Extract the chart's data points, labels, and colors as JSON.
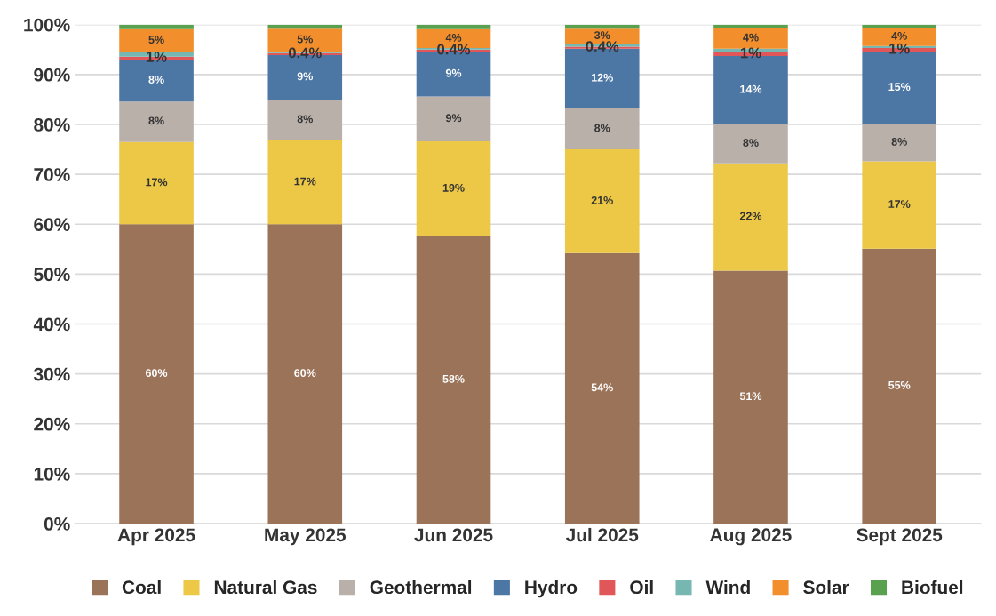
{
  "chart_data": {
    "type": "bar",
    "stacked": true,
    "categories": [
      "Apr 2025",
      "May 2025",
      "Jun 2025",
      "Jul 2025",
      "Aug 2025",
      "Sept 2025"
    ],
    "series": [
      {
        "name": "Coal",
        "color": "#9b7359",
        "values": [
          60.0,
          60.0,
          57.6,
          54.2,
          50.7,
          55.1
        ],
        "value_labels": [
          "60%",
          "60%",
          "58%",
          "54%",
          "51%",
          "55%"
        ]
      },
      {
        "name": "Natural Gas",
        "color": "#ecc846",
        "values": [
          16.5,
          16.8,
          19.0,
          20.8,
          21.5,
          17.5
        ],
        "value_labels": [
          "17%",
          "17%",
          "19%",
          "21%",
          "22%",
          "17%"
        ]
      },
      {
        "name": "Geothermal",
        "color": "#b9b0aa",
        "values": [
          8.1,
          8.2,
          9.0,
          8.2,
          7.9,
          7.5
        ],
        "value_labels": [
          "8%",
          "8%",
          "9%",
          "8%",
          "8%",
          "8%"
        ]
      },
      {
        "name": "Hydro",
        "color": "#4c77a5",
        "values": [
          8.4,
          8.9,
          9.0,
          12.0,
          13.6,
          14.5
        ],
        "value_labels": [
          "8%",
          "9%",
          "9%",
          "12%",
          "14%",
          "15%"
        ]
      },
      {
        "name": "Oil",
        "color": "#e15759",
        "values": [
          0.6,
          0.4,
          0.4,
          0.4,
          0.8,
          0.7
        ],
        "value_labels": [
          "1%",
          "0.4%",
          "0.4%",
          "0.4%",
          "1%",
          "1%"
        ]
      },
      {
        "name": "Wind",
        "color": "#76b7b2",
        "values": [
          0.9,
          0.3,
          0.3,
          0.6,
          0.7,
          0.4
        ]
      },
      {
        "name": "Solar",
        "color": "#f28e2b",
        "values": [
          4.6,
          4.6,
          3.8,
          3.0,
          4.1,
          3.7
        ],
        "value_labels": [
          "5%",
          "5%",
          "4%",
          "3%",
          "4%",
          "4%"
        ]
      },
      {
        "name": "Biofuel",
        "color": "#59a14f",
        "values": [
          0.9,
          0.8,
          0.9,
          0.8,
          0.7,
          0.6
        ]
      }
    ],
    "ylim": [
      0,
      100
    ],
    "yticks": [
      {
        "value": 0,
        "label": "0%"
      },
      {
        "value": 10,
        "label": "10%"
      },
      {
        "value": 20,
        "label": "20%"
      },
      {
        "value": 30,
        "label": "30%"
      },
      {
        "value": 40,
        "label": "40%"
      },
      {
        "value": 50,
        "label": "50%"
      },
      {
        "value": 60,
        "label": "60%"
      },
      {
        "value": 70,
        "label": "70%"
      },
      {
        "value": 80,
        "label": "80%"
      },
      {
        "value": 90,
        "label": "90%"
      },
      {
        "value": 100,
        "label": "100%"
      }
    ],
    "grid": "y",
    "legend": "bottom"
  }
}
